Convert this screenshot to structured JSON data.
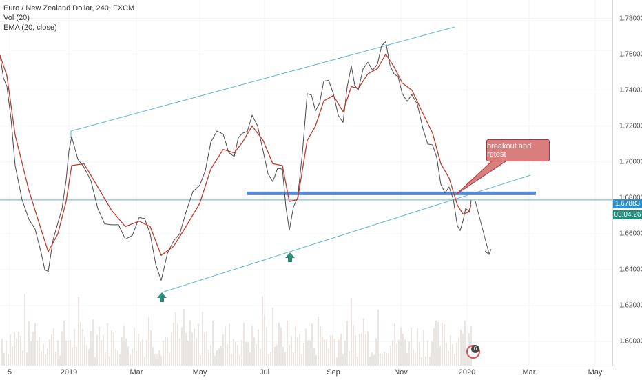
{
  "legend": {
    "symbol": "Euro / New Zealand Dollar, 240, FXCM",
    "volume": "Vol (20)",
    "ema": "EMA (20, close)"
  },
  "colors": {
    "price_line": "#4a4a4a",
    "ema_line": "#c0392b",
    "trendlines": "#5ab4d6",
    "support_line": "#5b8bd6",
    "marker": "#2e8b78",
    "callout": "#d97d7d",
    "volume": "#e7ddd8",
    "price_badge_blue": "#2c8fcc",
    "price_badge_teal": "#1f8f7c"
  },
  "chart_data": {
    "type": "line",
    "title": "Euro / New Zealand Dollar, 240, FXCM",
    "ylim": [
      1.5866,
      1.7902
    ],
    "x_ticks": [
      "5",
      "2019",
      "Mar",
      "May",
      "Jul",
      "Sep",
      "Nov",
      "2020",
      "Mar",
      "May"
    ],
    "y_ticks": [
      "1.78000",
      "1.76000",
      "1.74000",
      "1.72000",
      "1.70000",
      "1.68000",
      "1.66000",
      "1.64000",
      "1.62000",
      "1.60000"
    ],
    "series": [
      {
        "x": [
          0,
          10,
          22,
          42,
          60,
          70,
          84,
          96,
          104,
          122,
          142,
          162,
          182,
          202,
          218,
          234,
          252,
          270,
          290,
          306,
          324,
          340,
          352,
          366,
          382,
          396,
          410,
          420,
          432,
          446,
          458,
          470,
          484,
          498,
          510,
          520,
          534,
          548,
          560,
          572,
          584,
          598,
          614,
          628,
          640,
          652,
          664,
          672,
          680,
          684
        ],
        "values": [
          1.7595,
          1.742,
          1.698,
          1.668,
          1.649,
          1.639,
          1.666,
          1.69,
          1.714,
          1.697,
          1.674,
          1.665,
          1.657,
          1.669,
          1.66,
          1.634,
          1.656,
          1.672,
          1.687,
          1.711,
          1.7155,
          1.703,
          1.716,
          1.726,
          1.706,
          1.689,
          1.696,
          1.662,
          1.68,
          1.738,
          1.7285,
          1.745,
          1.738,
          1.722,
          1.7535,
          1.74,
          1.7555,
          1.7545,
          1.767,
          1.749,
          1.738,
          1.7375,
          1.7185,
          1.7095,
          1.6875,
          1.686,
          1.6645,
          1.667,
          1.673,
          1.6788
        ]
      },
      {
        "values": [
          1.7595,
          1.748,
          1.715,
          1.684,
          1.662,
          1.65,
          1.66,
          1.678,
          1.698,
          1.699,
          1.686,
          1.673,
          1.664,
          1.667,
          1.664,
          1.648,
          1.653,
          1.664,
          1.677,
          1.696,
          1.707,
          1.705,
          1.711,
          1.72,
          1.712,
          1.699,
          1.698,
          1.678,
          1.679,
          1.712,
          1.72,
          1.734,
          1.737,
          1.728,
          1.742,
          1.741,
          1.749,
          1.752,
          1.76,
          1.753,
          1.744,
          1.74,
          1.727,
          1.716,
          1.699,
          1.691,
          1.676,
          1.671,
          1.672,
          1.676
        ]
      }
    ],
    "last_price": "1.67883",
    "countdown": "03:04:26",
    "annotation": "breakout and retest",
    "events_count": "6"
  }
}
